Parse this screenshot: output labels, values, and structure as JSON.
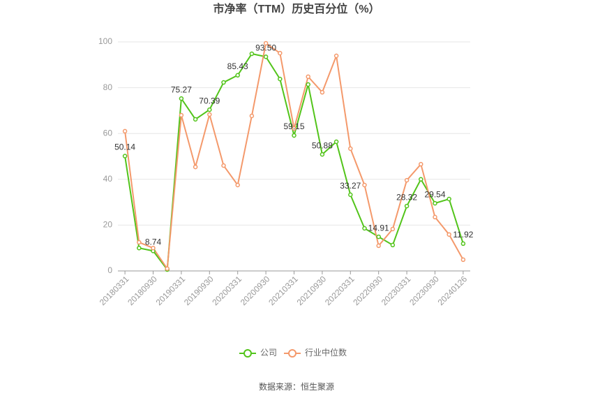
{
  "chart_data": {
    "type": "line",
    "title": "市净率（TTM）历史百分位（%）",
    "categories": [
      "20180331",
      null,
      "20180930",
      null,
      "20190331",
      null,
      "20190930",
      null,
      "20200331",
      null,
      "20200930",
      null,
      "20210331",
      null,
      "20210930",
      null,
      "20220331",
      null,
      "20220930",
      null,
      "20230331",
      null,
      "20230930",
      null,
      "20240126"
    ],
    "series": [
      {
        "name": "公司",
        "color": "#52c41a",
        "values": [
          50.14,
          10,
          8.74,
          0.6,
          75.27,
          66.2,
          70.39,
          82.3,
          85.43,
          94.8,
          93.5,
          83.8,
          59.15,
          81.4,
          50.88,
          56.4,
          33.27,
          18.6,
          14.91,
          11.3,
          28.32,
          40,
          29.54,
          31.4,
          11.92
        ],
        "value_labels": [
          "50.14",
          null,
          "8.74",
          null,
          "75.27",
          null,
          "70.39",
          null,
          "85.43",
          null,
          "93.50",
          null,
          "59.15",
          null,
          "50.88",
          null,
          "33.27",
          null,
          "14.91",
          null,
          "28.32",
          null,
          "29.54",
          null,
          "11.92"
        ]
      },
      {
        "name": "行业中位数",
        "color": "#f4996b",
        "values": [
          61,
          12.5,
          10,
          1,
          68,
          45.4,
          68.3,
          46,
          37.5,
          67.7,
          99.4,
          95.1,
          62.2,
          84.8,
          78,
          93.9,
          53.4,
          37.5,
          11,
          18.3,
          39.6,
          46.6,
          23.5,
          15.9,
          4.9
        ]
      }
    ],
    "ylim": [
      0,
      100
    ],
    "yticks": [
      0,
      20,
      40,
      60,
      80,
      100
    ],
    "grid": true,
    "legend": "bottom",
    "source": "数据来源：恒生聚源"
  }
}
